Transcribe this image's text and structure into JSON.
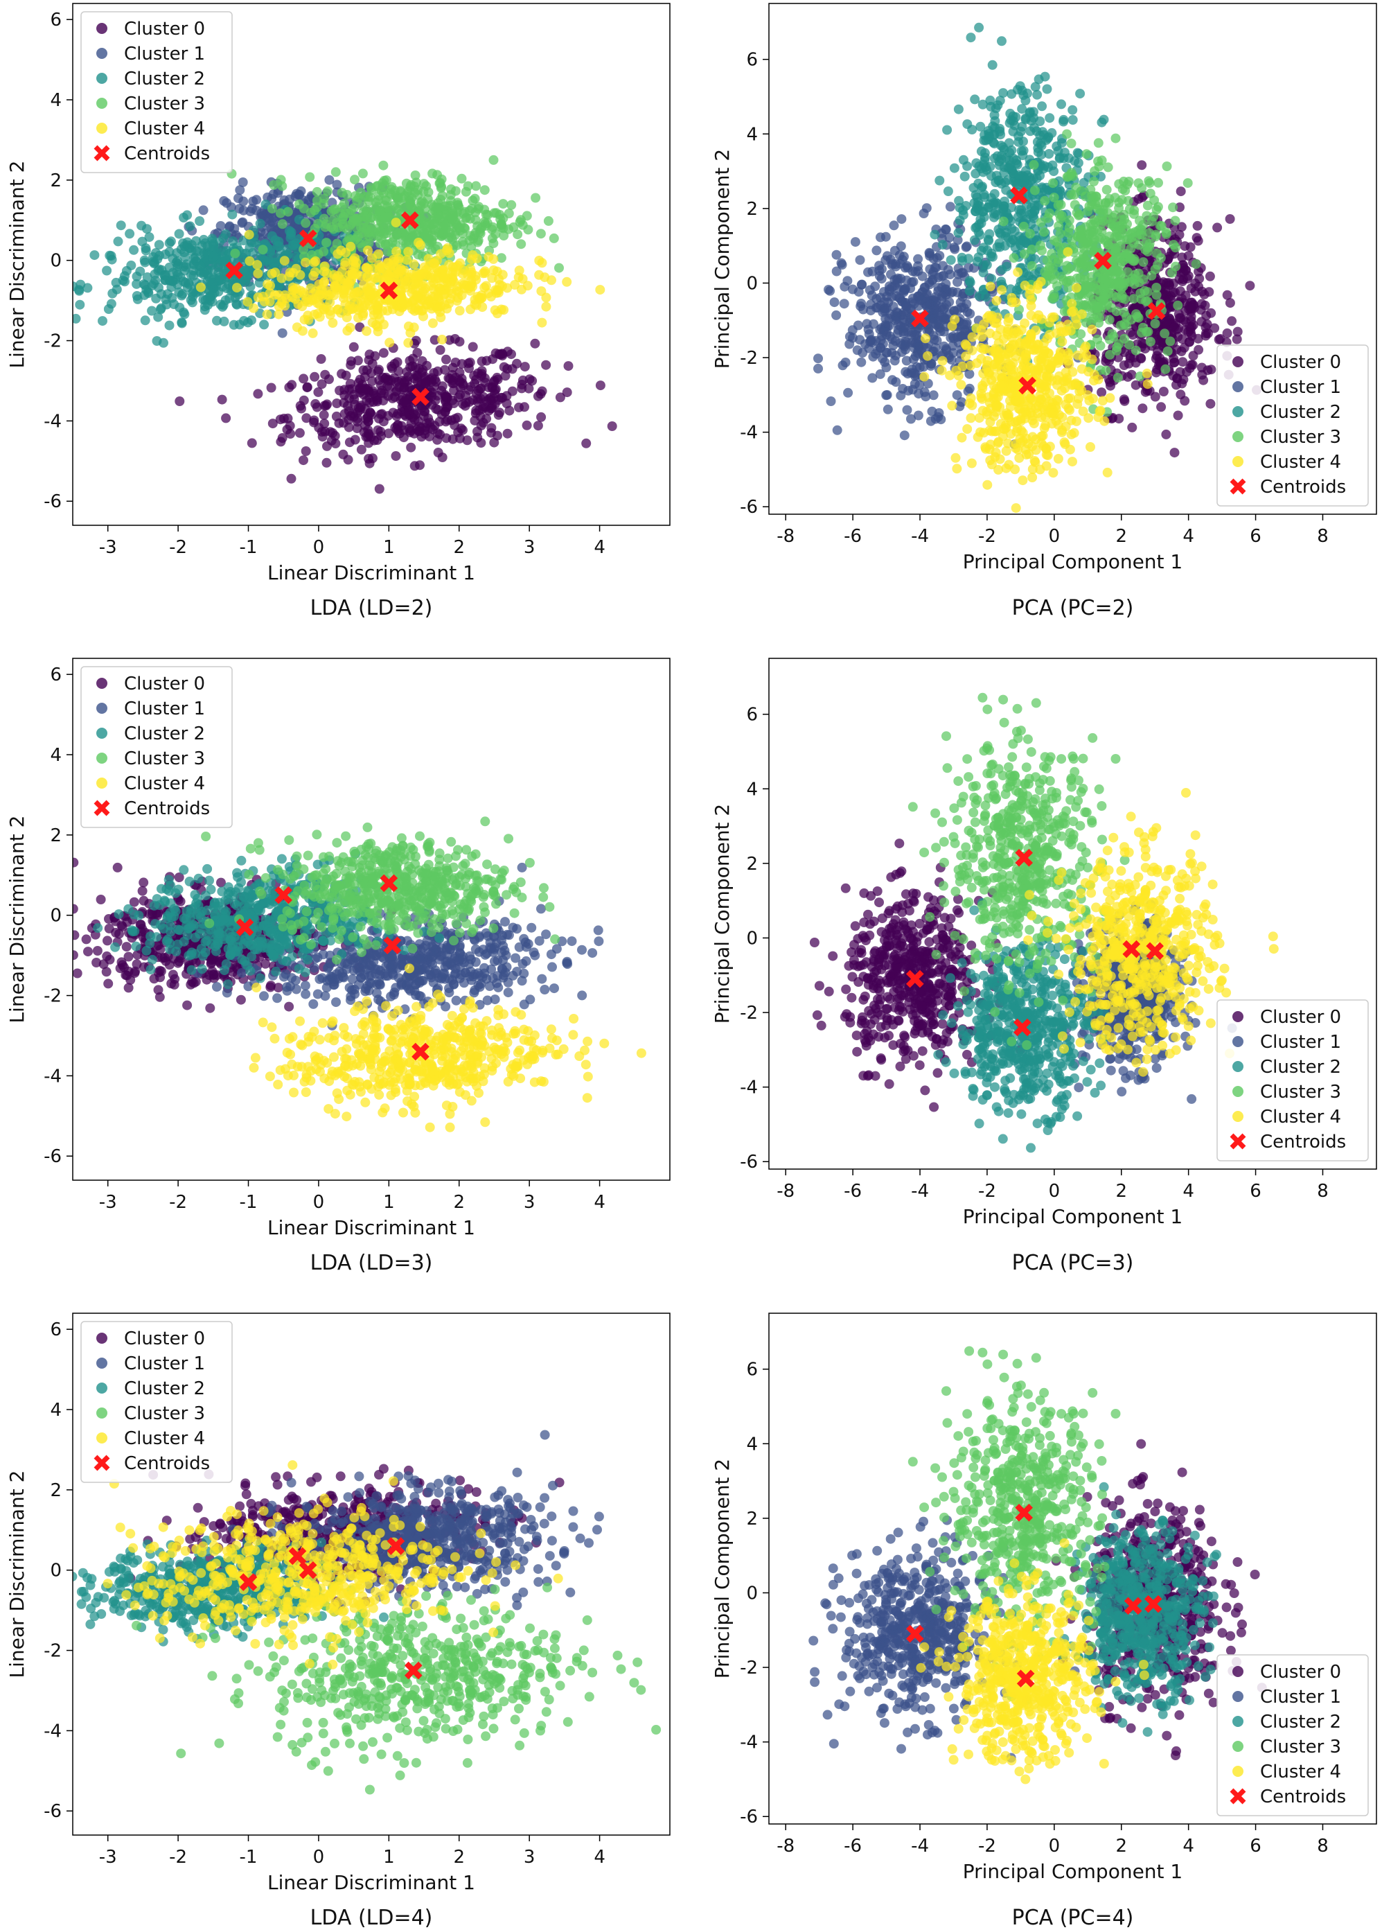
{
  "colors": {
    "cluster_0": "#440154",
    "cluster_1": "#3b528b",
    "cluster_2": "#21918c",
    "cluster_3": "#5ec962",
    "cluster_4": "#fde725",
    "centroid": "#ff1a1a"
  },
  "legend": {
    "entries": [
      "Cluster 0",
      "Cluster 1",
      "Cluster 2",
      "Cluster 3",
      "Cluster 4",
      "Centroids"
    ]
  },
  "chart_data": [
    {
      "type": "scatter",
      "caption": "LDA (LD=2)",
      "xlabel": "Linear Discriminant 1",
      "ylabel": "Linear Discriminant 2",
      "xlim": [
        -3.5,
        5.0
      ],
      "ylim": [
        -6.6,
        6.4
      ],
      "xticks": [
        -3,
        -2,
        -1,
        0,
        1,
        2,
        3,
        4
      ],
      "yticks": [
        -6,
        -4,
        -2,
        0,
        2,
        4,
        6
      ],
      "legend_position": "upper left",
      "clusters": [
        {
          "name": "Cluster 0",
          "color_key": "cluster_0",
          "center": [
            1.4,
            -3.5
          ],
          "spread": [
            0.95,
            0.6
          ],
          "angle": 12
        },
        {
          "name": "Cluster 1",
          "color_key": "cluster_1",
          "center": [
            -0.2,
            0.6
          ],
          "spread": [
            0.55,
            0.6
          ],
          "angle": 0
        },
        {
          "name": "Cluster 2",
          "color_key": "cluster_2",
          "center": [
            -1.3,
            -0.3
          ],
          "spread": [
            0.9,
            0.55
          ],
          "angle": 8
        },
        {
          "name": "Cluster 3",
          "color_key": "cluster_3",
          "center": [
            1.3,
            1.0
          ],
          "spread": [
            0.75,
            0.55
          ],
          "angle": 0
        },
        {
          "name": "Cluster 4",
          "color_key": "cluster_4",
          "center": [
            1.0,
            -0.7
          ],
          "spread": [
            0.9,
            0.45
          ],
          "angle": 8
        }
      ],
      "centroids": [
        [
          1.45,
          -3.4
        ],
        [
          -0.15,
          0.55
        ],
        [
          -1.2,
          -0.25
        ],
        [
          1.3,
          1.0
        ],
        [
          1.0,
          -0.75
        ]
      ]
    },
    {
      "type": "scatter",
      "caption": "PCA (PC=2)",
      "xlabel": "Principal Component 1",
      "ylabel": "Principal Component 2",
      "xlim": [
        -8.5,
        9.6
      ],
      "ylim": [
        -6.2,
        7.5
      ],
      "xticks": [
        -8,
        -6,
        -4,
        -2,
        0,
        2,
        4,
        6,
        8
      ],
      "yticks": [
        -6,
        -4,
        -2,
        0,
        2,
        4,
        6
      ],
      "legend_position": "lower right",
      "clusters": [
        {
          "name": "Cluster 0",
          "color_key": "cluster_0",
          "center": [
            3.0,
            -0.8
          ],
          "spread": [
            0.95,
            1.2
          ],
          "angle": 0
        },
        {
          "name": "Cluster 1",
          "color_key": "cluster_1",
          "center": [
            -4.0,
            -1.0
          ],
          "spread": [
            1.1,
            1.1
          ],
          "angle": 0
        },
        {
          "name": "Cluster 2",
          "color_key": "cluster_2",
          "center": [
            -1.0,
            2.3
          ],
          "spread": [
            1.0,
            1.5
          ],
          "angle": 0
        },
        {
          "name": "Cluster 3",
          "color_key": "cluster_3",
          "center": [
            1.5,
            0.6
          ],
          "spread": [
            1.0,
            1.2
          ],
          "angle": 0
        },
        {
          "name": "Cluster 4",
          "color_key": "cluster_4",
          "center": [
            -0.8,
            -2.8
          ],
          "spread": [
            1.0,
            1.1
          ],
          "angle": 0
        }
      ],
      "centroids": [
        [
          3.05,
          -0.75
        ],
        [
          -4.0,
          -0.95
        ],
        [
          -1.05,
          2.35
        ],
        [
          1.45,
          0.6
        ],
        [
          -0.8,
          -2.75
        ]
      ]
    },
    {
      "type": "scatter",
      "caption": "LDA (LD=3)",
      "xlabel": "Linear Discriminant 1",
      "ylabel": "Linear Discriminant 2",
      "xlim": [
        -3.5,
        5.0
      ],
      "ylim": [
        -6.6,
        6.4
      ],
      "xticks": [
        -3,
        -2,
        -1,
        0,
        1,
        2,
        3,
        4
      ],
      "yticks": [
        -6,
        -4,
        -2,
        0,
        2,
        4,
        6
      ],
      "legend_position": "upper left",
      "clusters": [
        {
          "name": "Cluster 0",
          "color_key": "cluster_0",
          "center": [
            -1.6,
            -0.6
          ],
          "spread": [
            0.8,
            0.6
          ],
          "angle": 0
        },
        {
          "name": "Cluster 1",
          "color_key": "cluster_1",
          "center": [
            1.3,
            -1.2
          ],
          "spread": [
            1.0,
            0.5
          ],
          "angle": 8
        },
        {
          "name": "Cluster 2",
          "color_key": "cluster_2",
          "center": [
            -0.8,
            -0.1
          ],
          "spread": [
            0.8,
            0.6
          ],
          "angle": 8
        },
        {
          "name": "Cluster 3",
          "color_key": "cluster_3",
          "center": [
            1.1,
            0.7
          ],
          "spread": [
            0.8,
            0.6
          ],
          "angle": 0
        },
        {
          "name": "Cluster 4",
          "color_key": "cluster_4",
          "center": [
            1.4,
            -3.5
          ],
          "spread": [
            0.95,
            0.6
          ],
          "angle": 12
        }
      ],
      "centroids": [
        [
          -1.05,
          -0.3
        ],
        [
          1.05,
          -0.75
        ],
        [
          -0.5,
          0.5
        ],
        [
          1.0,
          0.8
        ],
        [
          1.45,
          -3.4
        ]
      ]
    },
    {
      "type": "scatter",
      "caption": "PCA (PC=3)",
      "xlabel": "Principal Component 1",
      "ylabel": "Principal Component 2",
      "xlim": [
        -8.5,
        9.6
      ],
      "ylim": [
        -6.2,
        7.5
      ],
      "xticks": [
        -8,
        -6,
        -4,
        -2,
        0,
        2,
        4,
        6,
        8
      ],
      "yticks": [
        -6,
        -4,
        -2,
        0,
        2,
        4,
        6
      ],
      "legend_position": "lower right",
      "clusters": [
        {
          "name": "Cluster 0",
          "color_key": "cluster_0",
          "center": [
            -4.2,
            -1.1
          ],
          "spread": [
            1.0,
            1.1
          ],
          "angle": 0
        },
        {
          "name": "Cluster 1",
          "color_key": "cluster_1",
          "center": [
            2.3,
            -1.6
          ],
          "spread": [
            0.7,
            0.9
          ],
          "angle": 0
        },
        {
          "name": "Cluster 2",
          "color_key": "cluster_2",
          "center": [
            -0.9,
            -2.4
          ],
          "spread": [
            1.0,
            1.1
          ],
          "angle": 0
        },
        {
          "name": "Cluster 3",
          "color_key": "cluster_3",
          "center": [
            -0.9,
            2.2
          ],
          "spread": [
            1.1,
            1.5
          ],
          "angle": 0
        },
        {
          "name": "Cluster 4",
          "color_key": "cluster_4",
          "center": [
            2.6,
            -0.4
          ],
          "spread": [
            1.1,
            1.3
          ],
          "angle": 0
        }
      ],
      "centroids": [
        [
          -4.15,
          -1.1
        ],
        [
          2.3,
          -0.3
        ],
        [
          -0.95,
          -2.4
        ],
        [
          -0.9,
          2.15
        ],
        [
          3.0,
          -0.35
        ]
      ]
    },
    {
      "type": "scatter",
      "caption": "LDA (LD=4)",
      "xlabel": "Linear Discriminant 1",
      "ylabel": "Linear Discriminant 2",
      "xlim": [
        -3.5,
        5.0
      ],
      "ylim": [
        -6.6,
        6.4
      ],
      "xticks": [
        -3,
        -2,
        -1,
        0,
        1,
        2,
        3,
        4
      ],
      "yticks": [
        -6,
        -4,
        -2,
        0,
        2,
        4,
        6
      ],
      "legend_position": "upper left",
      "clusters": [
        {
          "name": "Cluster 0",
          "color_key": "cluster_0",
          "center": [
            0.3,
            0.9
          ],
          "spread": [
            1.0,
            0.6
          ],
          "angle": 10
        },
        {
          "name": "Cluster 1",
          "color_key": "cluster_1",
          "center": [
            1.5,
            0.8
          ],
          "spread": [
            0.9,
            0.6
          ],
          "angle": 0
        },
        {
          "name": "Cluster 2",
          "color_key": "cluster_2",
          "center": [
            -1.5,
            -0.5
          ],
          "spread": [
            0.8,
            0.5
          ],
          "angle": 0
        },
        {
          "name": "Cluster 3",
          "color_key": "cluster_3",
          "center": [
            1.4,
            -2.6
          ],
          "spread": [
            1.1,
            0.9
          ],
          "angle": 10
        },
        {
          "name": "Cluster 4",
          "color_key": "cluster_4",
          "center": [
            -0.3,
            -0.1
          ],
          "spread": [
            1.1,
            0.75
          ],
          "angle": 10
        }
      ],
      "centroids": [
        [
          -0.3,
          0.35
        ],
        [
          -0.15,
          0.0
        ],
        [
          -1.0,
          -0.3
        ],
        [
          1.35,
          -2.5
        ],
        [
          1.1,
          0.6
        ]
      ]
    },
    {
      "type": "scatter",
      "caption": "PCA (PC=4)",
      "xlabel": "Principal Component 1",
      "ylabel": "Principal Component 2",
      "xlim": [
        -8.5,
        9.6
      ],
      "ylim": [
        -6.2,
        7.5
      ],
      "xticks": [
        -8,
        -6,
        -4,
        -2,
        0,
        2,
        4,
        6,
        8
      ],
      "yticks": [
        -6,
        -4,
        -2,
        0,
        2,
        4,
        6
      ],
      "legend_position": "lower right",
      "clusters": [
        {
          "name": "Cluster 0",
          "color_key": "cluster_0",
          "center": [
            3.0,
            -0.3
          ],
          "spread": [
            1.0,
            1.3
          ],
          "angle": 0
        },
        {
          "name": "Cluster 1",
          "color_key": "cluster_1",
          "center": [
            -4.1,
            -1.1
          ],
          "spread": [
            1.1,
            1.1
          ],
          "angle": 0
        },
        {
          "name": "Cluster 2",
          "color_key": "cluster_2",
          "center": [
            2.6,
            -0.5
          ],
          "spread": [
            0.9,
            1.1
          ],
          "angle": 0
        },
        {
          "name": "Cluster 3",
          "color_key": "cluster_3",
          "center": [
            -0.9,
            2.2
          ],
          "spread": [
            1.1,
            1.5
          ],
          "angle": 0
        },
        {
          "name": "Cluster 4",
          "color_key": "cluster_4",
          "center": [
            -0.9,
            -2.3
          ],
          "spread": [
            1.0,
            1.1
          ],
          "angle": 0
        }
      ],
      "centroids": [
        [
          2.95,
          -0.3
        ],
        [
          -4.15,
          -1.1
        ],
        [
          2.35,
          -0.35
        ],
        [
          -0.9,
          2.15
        ],
        [
          -0.85,
          -2.3
        ]
      ]
    }
  ]
}
